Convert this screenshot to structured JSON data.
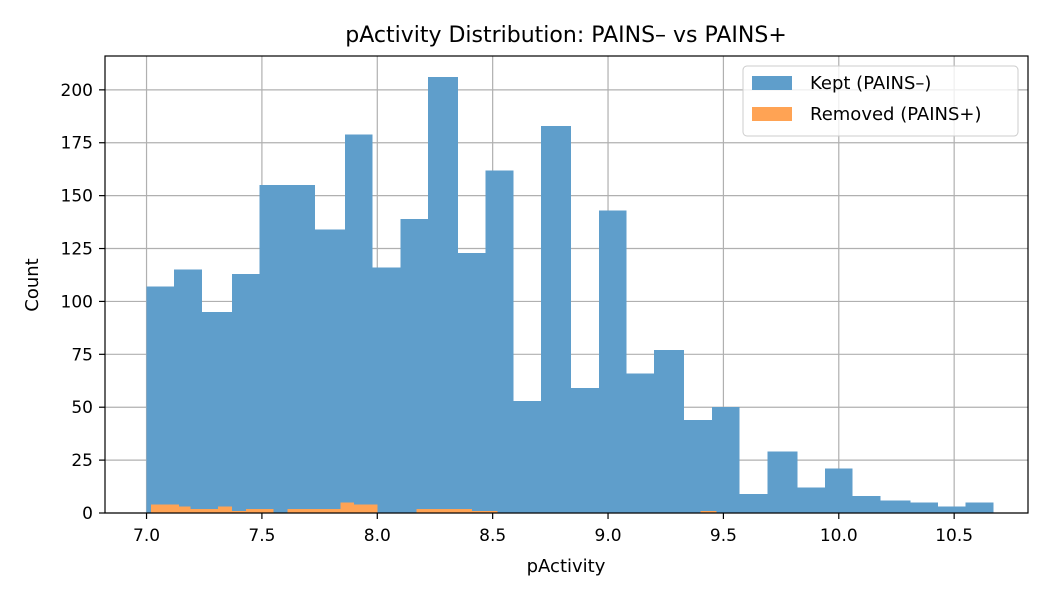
{
  "chart_data": {
    "type": "bar",
    "title": "pActivity Distribution: PAINS– vs PAINS+",
    "xlabel": "pActivity",
    "ylabel": "Count",
    "xlim": [
      6.82,
      10.82
    ],
    "ylim": [
      0,
      216
    ],
    "grid": true,
    "legend_position": "top-right",
    "x_ticks": [
      7.0,
      7.5,
      8.0,
      8.5,
      9.0,
      9.5,
      10.0,
      10.5
    ],
    "x_tick_labels": [
      "7.0",
      "7.5",
      "8.0",
      "8.5",
      "9.0",
      "9.5",
      "10.0",
      "10.5"
    ],
    "y_ticks": [
      0,
      25,
      50,
      75,
      100,
      125,
      150,
      175,
      200
    ],
    "y_tick_labels": [
      "0",
      "25",
      "50",
      "75",
      "100",
      "125",
      "150",
      "175",
      "200"
    ],
    "series": [
      {
        "name": "Kept (PAINS–)",
        "color": "#5f9ecb",
        "bins": [
          [
            7.0,
            7.12,
            107
          ],
          [
            7.12,
            7.24,
            115
          ],
          [
            7.24,
            7.37,
            95
          ],
          [
            7.37,
            7.49,
            113
          ],
          [
            7.49,
            7.61,
            155
          ],
          [
            7.61,
            7.73,
            155
          ],
          [
            7.73,
            7.86,
            134
          ],
          [
            7.86,
            7.98,
            179
          ],
          [
            7.98,
            8.1,
            116
          ],
          [
            8.1,
            8.22,
            139
          ],
          [
            8.22,
            8.35,
            206
          ],
          [
            8.35,
            8.47,
            123
          ],
          [
            8.47,
            8.59,
            162
          ],
          [
            8.59,
            8.71,
            53
          ],
          [
            8.71,
            8.84,
            183
          ],
          [
            8.84,
            8.96,
            59
          ],
          [
            8.96,
            9.08,
            143
          ],
          [
            9.08,
            9.2,
            66
          ],
          [
            9.2,
            9.33,
            77
          ],
          [
            9.33,
            9.45,
            44
          ],
          [
            9.45,
            9.57,
            50
          ],
          [
            9.57,
            9.69,
            9
          ],
          [
            9.69,
            9.82,
            29
          ],
          [
            9.82,
            9.94,
            12
          ],
          [
            9.94,
            10.06,
            21
          ],
          [
            10.06,
            10.18,
            8
          ],
          [
            10.18,
            10.31,
            6
          ],
          [
            10.31,
            10.43,
            5
          ],
          [
            10.43,
            10.55,
            3
          ],
          [
            10.55,
            10.67,
            5
          ]
        ]
      },
      {
        "name": "Removed (PAINS+)",
        "color": "#ffa354",
        "bins": [
          [
            7.02,
            7.08,
            4
          ],
          [
            7.08,
            7.14,
            4
          ],
          [
            7.14,
            7.19,
            3
          ],
          [
            7.19,
            7.25,
            2
          ],
          [
            7.25,
            7.31,
            2
          ],
          [
            7.31,
            7.37,
            3
          ],
          [
            7.37,
            7.43,
            1
          ],
          [
            7.43,
            7.49,
            2
          ],
          [
            7.49,
            7.55,
            2
          ],
          [
            7.61,
            7.67,
            2
          ],
          [
            7.67,
            7.73,
            2
          ],
          [
            7.73,
            7.78,
            2
          ],
          [
            7.78,
            7.84,
            2
          ],
          [
            7.84,
            7.9,
            5
          ],
          [
            7.9,
            7.96,
            4
          ],
          [
            7.96,
            8.0,
            4
          ],
          [
            8.17,
            8.23,
            2
          ],
          [
            8.23,
            8.29,
            2
          ],
          [
            8.29,
            8.35,
            2
          ],
          [
            8.35,
            8.41,
            2
          ],
          [
            8.41,
            8.47,
            1
          ],
          [
            8.47,
            8.52,
            1
          ],
          [
            9.4,
            9.47,
            1
          ]
        ]
      }
    ]
  }
}
